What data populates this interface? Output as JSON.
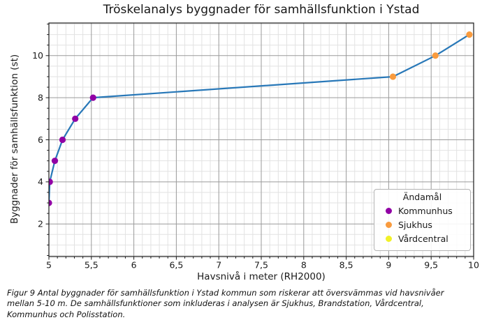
{
  "figure": {
    "caption": "Figur 9 Antal byggnader för samhällsfunktion i Ystad kommun som riskerar att översvämmas vid havsnivåer mellan 5-10 m. De samhällsfunktioner som inkluderas i analysen är Sjukhus, Brandstation, Vårdcentral, Kommunhus och Polisstation."
  },
  "chart_data": {
    "type": "line",
    "title": "Tröskelanalys byggnader för samhällsfunktion i Ystad",
    "xlabel": "Havsnivå i meter (RH2000)",
    "ylabel": "Byggnader för samhällsfunktion (st)",
    "xlim": [
      5,
      10
    ],
    "ylim": [
      0.45,
      11.55
    ],
    "x_major_ticks": [
      5,
      5.5,
      6,
      6.5,
      7,
      7.5,
      8,
      8.5,
      9,
      9.5,
      10
    ],
    "x_tick_labels": [
      "5",
      "5,5",
      "6",
      "6,5",
      "7",
      "7,5",
      "8",
      "8,5",
      "9",
      "9,5",
      "10"
    ],
    "x_minor_step": 0.1,
    "y_major_ticks": [
      2,
      4,
      6,
      8,
      10
    ],
    "y_tick_labels": [
      "2",
      "4",
      "6",
      "8",
      "10"
    ],
    "y_minor_step": 0.5,
    "grid": "both",
    "legend_title": "Ändamål",
    "legend_position": "lower right",
    "line_color": "#2878b8",
    "major_grid_color": "#9a9a9a",
    "minor_grid_color": "#e2e2e2",
    "axis_color": "#1a1a1a",
    "categories": [
      {
        "name": "Kommunhus",
        "color": "#9100a5"
      },
      {
        "name": "Sjukhus",
        "color": "#f99b3e"
      },
      {
        "name": "Vårdcentral",
        "color": "#f1f128"
      }
    ],
    "points": [
      {
        "x": 5.0,
        "y": 3,
        "category": "Kommunhus"
      },
      {
        "x": 5.01,
        "y": 4,
        "category": "Kommunhus"
      },
      {
        "x": 5.07,
        "y": 5,
        "category": "Kommunhus"
      },
      {
        "x": 5.16,
        "y": 6,
        "category": "Kommunhus"
      },
      {
        "x": 5.31,
        "y": 7,
        "category": "Kommunhus"
      },
      {
        "x": 5.52,
        "y": 8,
        "category": "Kommunhus"
      },
      {
        "x": 9.05,
        "y": 9,
        "category": "Sjukhus"
      },
      {
        "x": 9.55,
        "y": 10,
        "category": "Sjukhus"
      },
      {
        "x": 9.95,
        "y": 11,
        "category": "Sjukhus"
      }
    ]
  }
}
